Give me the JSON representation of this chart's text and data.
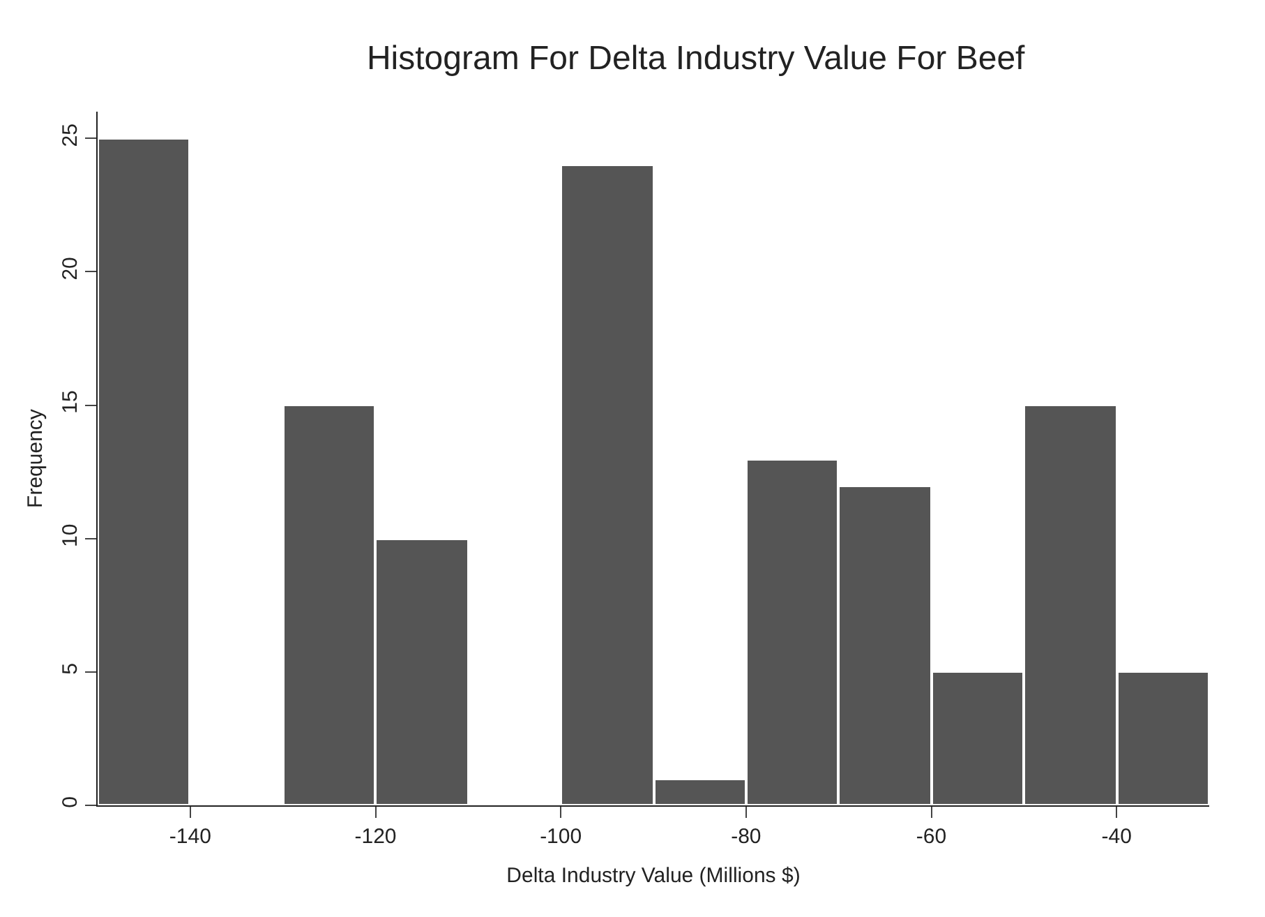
{
  "chart_data": {
    "type": "histogram",
    "title": "Histogram For Delta Industry Value For Beef",
    "xlabel": "Delta Industry Value (Millions $)",
    "ylabel": "Frequency",
    "bins": [
      -150,
      -140,
      -130,
      -120,
      -110,
      -100,
      -90,
      -80,
      -70,
      -60,
      -50,
      -40,
      -30
    ],
    "values": [
      25,
      0,
      15,
      10,
      0,
      24,
      1,
      13,
      12,
      5,
      15,
      5
    ],
    "color": "#555555",
    "xlim": [
      -150,
      -30
    ],
    "xticks": [
      -140,
      -120,
      -100,
      -80,
      -60,
      -40
    ],
    "ylim": [
      0,
      26
    ],
    "yticks": [
      0,
      5,
      10,
      15,
      20,
      25
    ],
    "grid": false,
    "legend": false
  }
}
